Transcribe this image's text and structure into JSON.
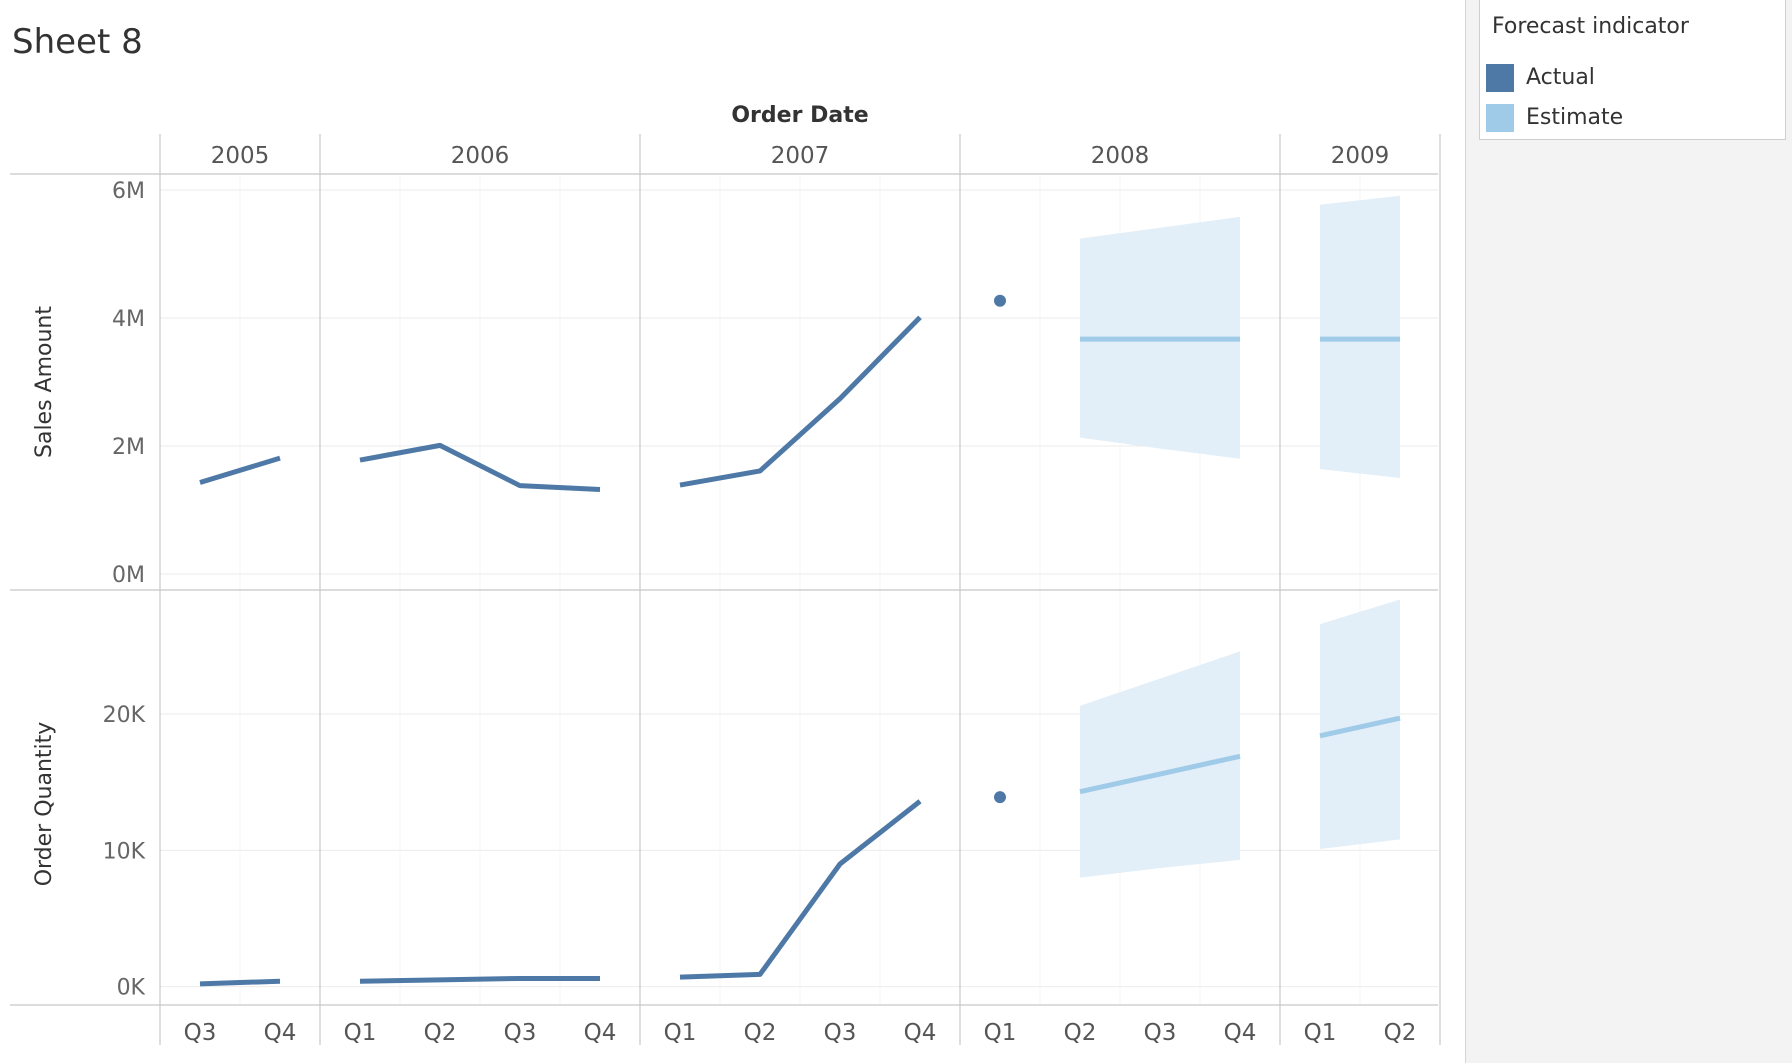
{
  "sheet": {
    "title": "Sheet 8"
  },
  "legend": {
    "title": "Forecast indicator",
    "items": [
      {
        "label": "Actual",
        "color": "#4e79a7"
      },
      {
        "label": "Estimate",
        "color": "#a0cbe8"
      }
    ]
  },
  "colors": {
    "actual": "#4e79a7",
    "estimate": "#a0cbe8",
    "band": "#e2eef8",
    "grid": "#ebebeb",
    "divider": "#c8c8c8"
  },
  "chart_data": {
    "type": "line",
    "title": "",
    "x_header": "Order Date",
    "years": [
      {
        "year": "2005",
        "quarters": [
          "Q3",
          "Q4"
        ]
      },
      {
        "year": "2006",
        "quarters": [
          "Q1",
          "Q2",
          "Q3",
          "Q4"
        ]
      },
      {
        "year": "2007",
        "quarters": [
          "Q1",
          "Q2",
          "Q3",
          "Q4"
        ]
      },
      {
        "year": "2008",
        "quarters": [
          "Q1",
          "Q2",
          "Q3",
          "Q4"
        ]
      },
      {
        "year": "2009",
        "quarters": [
          "Q1",
          "Q2"
        ]
      }
    ],
    "panes": [
      {
        "measure": "Sales Amount",
        "ylim": [
          0,
          6000000
        ],
        "ticks": [
          {
            "value": 0,
            "label": "0M"
          },
          {
            "value": 2000000,
            "label": "2M"
          },
          {
            "value": 4000000,
            "label": "4M"
          },
          {
            "value": 6000000,
            "label": "6M"
          }
        ],
        "series": [
          {
            "name": "Actual",
            "points": [
              {
                "year": "2005",
                "quarter": "Q3",
                "value": 1430000
              },
              {
                "year": "2005",
                "quarter": "Q4",
                "value": 1810000
              },
              {
                "year": "2006",
                "quarter": "Q1",
                "value": 1780000
              },
              {
                "year": "2006",
                "quarter": "Q2",
                "value": 2010000
              },
              {
                "year": "2006",
                "quarter": "Q3",
                "value": 1380000
              },
              {
                "year": "2006",
                "quarter": "Q4",
                "value": 1320000
              },
              {
                "year": "2007",
                "quarter": "Q1",
                "value": 1390000
              },
              {
                "year": "2007",
                "quarter": "Q2",
                "value": 1610000
              },
              {
                "year": "2007",
                "quarter": "Q3",
                "value": 2740000
              },
              {
                "year": "2007",
                "quarter": "Q4",
                "value": 4010000
              },
              {
                "year": "2008",
                "quarter": "Q1",
                "value": 4270000
              }
            ]
          },
          {
            "name": "Estimate",
            "points": [
              {
                "year": "2008",
                "quarter": "Q2",
                "value": 3670000,
                "low": 2130000,
                "high": 5240000
              },
              {
                "year": "2008",
                "quarter": "Q3",
                "value": 3670000,
                "low": 1960000,
                "high": 5410000
              },
              {
                "year": "2008",
                "quarter": "Q4",
                "value": 3670000,
                "low": 1800000,
                "high": 5580000
              },
              {
                "year": "2009",
                "quarter": "Q1",
                "value": 3670000,
                "low": 1640000,
                "high": 5770000
              },
              {
                "year": "2009",
                "quarter": "Q2",
                "value": 3670000,
                "low": 1500000,
                "high": 5910000
              }
            ]
          }
        ]
      },
      {
        "measure": "Order Quantity",
        "ylim": [
          -1200,
          28000
        ],
        "ticks": [
          {
            "value": 0,
            "label": "0K"
          },
          {
            "value": 10000,
            "label": "10K"
          },
          {
            "value": 20000,
            "label": "20K"
          }
        ],
        "series": [
          {
            "name": "Actual",
            "points": [
              {
                "year": "2005",
                "quarter": "Q3",
                "value": 200
              },
              {
                "year": "2005",
                "quarter": "Q4",
                "value": 400
              },
              {
                "year": "2006",
                "quarter": "Q1",
                "value": 400
              },
              {
                "year": "2006",
                "quarter": "Q2",
                "value": 500
              },
              {
                "year": "2006",
                "quarter": "Q3",
                "value": 600
              },
              {
                "year": "2006",
                "quarter": "Q4",
                "value": 600
              },
              {
                "year": "2007",
                "quarter": "Q1",
                "value": 700
              },
              {
                "year": "2007",
                "quarter": "Q2",
                "value": 900
              },
              {
                "year": "2007",
                "quarter": "Q3",
                "value": 9000
              },
              {
                "year": "2007",
                "quarter": "Q4",
                "value": 13600
              },
              {
                "year": "2008",
                "quarter": "Q1",
                "value": 13900
              }
            ]
          },
          {
            "name": "Estimate",
            "points": [
              {
                "year": "2008",
                "quarter": "Q2",
                "value": 14300,
                "low": 8000,
                "high": 20600
              },
              {
                "year": "2008",
                "quarter": "Q3",
                "value": 15600,
                "low": 8700,
                "high": 22600
              },
              {
                "year": "2008",
                "quarter": "Q4",
                "value": 16900,
                "low": 9300,
                "high": 24600
              },
              {
                "year": "2009",
                "quarter": "Q1",
                "value": 18400,
                "low": 10100,
                "high": 26600
              },
              {
                "year": "2009",
                "quarter": "Q2",
                "value": 19700,
                "low": 10800,
                "high": 28400
              }
            ]
          }
        ]
      }
    ]
  }
}
